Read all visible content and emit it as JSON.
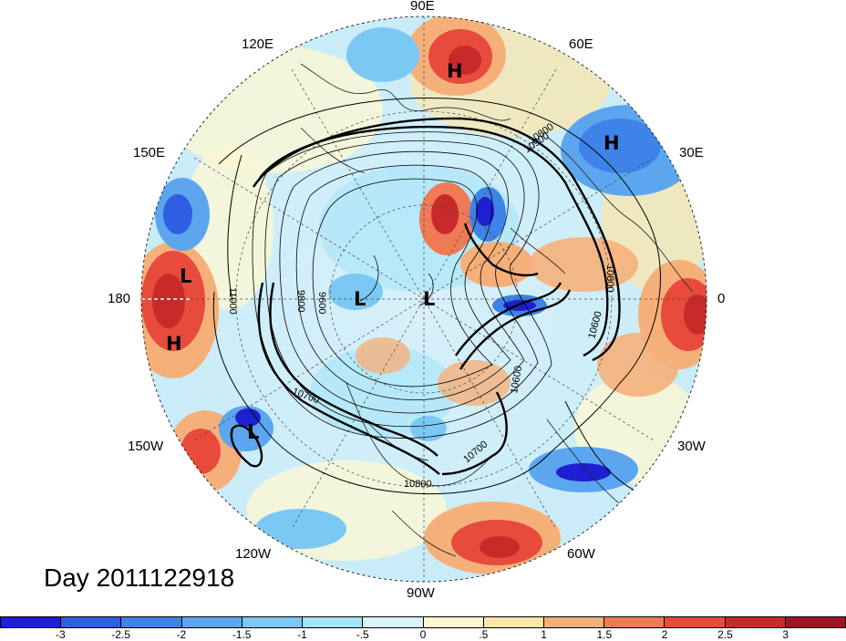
{
  "title": "Day 2011122918",
  "longitude_labels": {
    "e90": "90E",
    "e120": "120E",
    "e60": "60E",
    "e150": "150E",
    "e30": "30E",
    "d180": "180",
    "d0": "0",
    "w150": "150W",
    "w30": "30W",
    "w120": "120W",
    "w60": "60W",
    "w90": "90W"
  },
  "pressure_centers": {
    "h_siberia": "H",
    "h_europe": "H",
    "l_pacific_west": "L",
    "h_pacific": "H",
    "l_arctic_1": "L",
    "l_arctic_2": "L",
    "l_gulf_alaska": "L"
  },
  "contour_labels": [
    "10800",
    "10900",
    "11000",
    "9800",
    "9600",
    "10700",
    "10600",
    "10800",
    "10700",
    "10600",
    "10800"
  ],
  "colorbar": {
    "colors": [
      "#1e1ed2",
      "#2e5fe0",
      "#3e84e8",
      "#5ca6f0",
      "#7cc8f4",
      "#a4e4f8",
      "#d8f4fa",
      "#fdf8d2",
      "#fde6a8",
      "#f5b07a",
      "#ef7a56",
      "#e84a3c",
      "#c82a2a",
      "#a01422"
    ],
    "ticks": [
      "-3",
      "-2.5",
      "-2",
      "-1.5",
      "-1",
      "-.5",
      "0",
      ".5",
      "1",
      "1.5",
      "2",
      "2.5",
      "3"
    ]
  },
  "map": {
    "projection": "north-polar-stereographic",
    "field": "anomaly-shaded-with-height-contours"
  }
}
